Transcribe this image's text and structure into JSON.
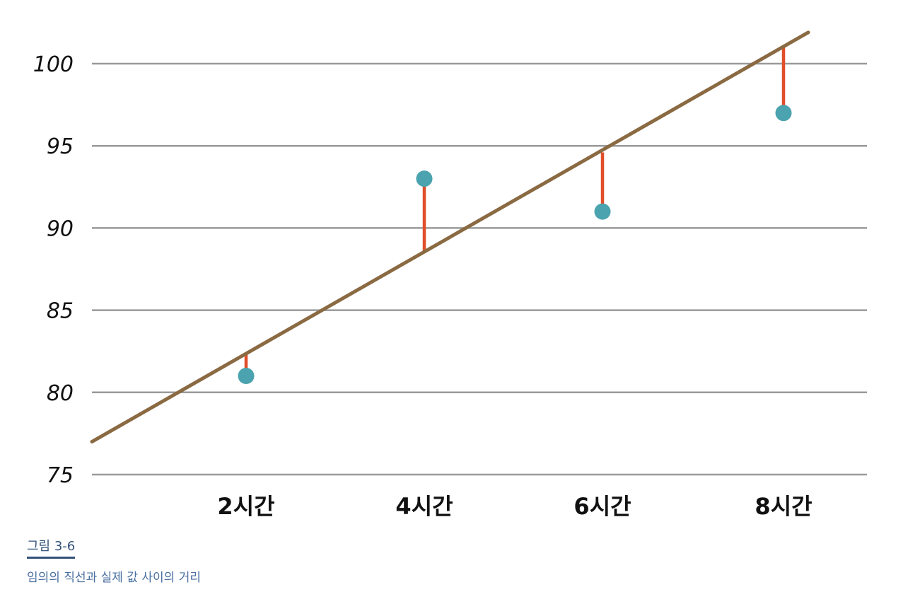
{
  "chart_data": {
    "type": "scatter",
    "ylim": [
      75,
      100
    ],
    "yticks": [
      75,
      80,
      85,
      90,
      95,
      100
    ],
    "ytick_labels": [
      "75",
      "80",
      "85",
      "90",
      "95",
      "100"
    ],
    "categories": [
      "2시간",
      "4시간",
      "6시간",
      "8시간"
    ],
    "series": [
      {
        "values": [
          81,
          93,
          91,
          97
        ]
      }
    ],
    "line": {
      "values_at_categories": [
        82.4,
        88.6,
        94.6,
        101.0
      ],
      "start_value": 77.0,
      "end_value": 101.9
    },
    "grid": true,
    "colors": {
      "points": "#4aa3ae",
      "line": "#8a6a42",
      "residuals": "#e04e2a",
      "grid": "#9a9a9a"
    }
  },
  "caption": {
    "label": "그림 3-6",
    "text": "임의의 직선과 실제 값 사이의 거리"
  }
}
